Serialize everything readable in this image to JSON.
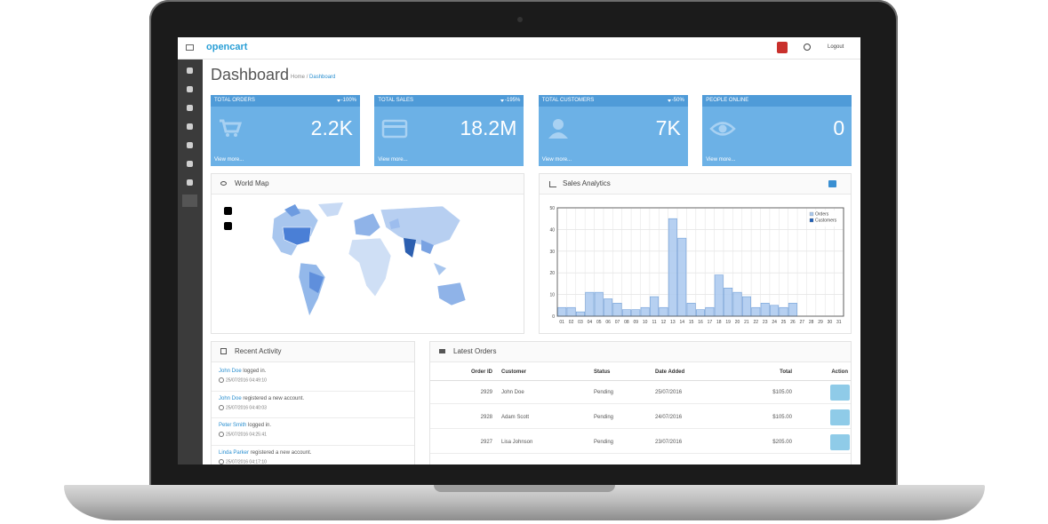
{
  "header": {
    "logo": "opencart",
    "logout": "Logout"
  },
  "page": {
    "title": "Dashboard",
    "breadcrumb": [
      "Home",
      "Dashboard"
    ]
  },
  "tiles": [
    {
      "label": "TOTAL ORDERS",
      "change": "-100%",
      "value": "2.2K",
      "link": "View more..."
    },
    {
      "label": "TOTAL SALES",
      "change": "-195%",
      "value": "18.2M",
      "link": "View more..."
    },
    {
      "label": "TOTAL CUSTOMERS",
      "change": "-50%",
      "value": "7K",
      "link": "View more..."
    },
    {
      "label": "PEOPLE ONLINE",
      "value": "0",
      "link": "View more..."
    }
  ],
  "world_map": {
    "title": "World Map"
  },
  "sales_analytics": {
    "title": "Sales Analytics"
  },
  "chart_data": {
    "type": "bar",
    "categories": [
      "01",
      "02",
      "03",
      "04",
      "05",
      "06",
      "07",
      "08",
      "09",
      "10",
      "11",
      "12",
      "13",
      "14",
      "15",
      "16",
      "17",
      "18",
      "19",
      "20",
      "21",
      "22",
      "23",
      "24",
      "25",
      "26",
      "27",
      "28",
      "29",
      "30",
      "31"
    ],
    "series": [
      {
        "name": "Orders",
        "color": "#a9c8ee",
        "values": [
          4,
          4,
          2,
          11,
          11,
          8,
          6,
          3,
          3,
          4,
          9,
          4,
          45,
          36,
          6,
          3,
          4,
          19,
          13,
          11,
          9,
          4,
          6,
          5,
          4,
          6,
          0,
          0,
          0,
          0,
          0
        ]
      },
      {
        "name": "Customers",
        "color": "#1f5fb8",
        "values": [
          0,
          0,
          0,
          0,
          0,
          0,
          0,
          0,
          0,
          0,
          0,
          0,
          0,
          0,
          0,
          0,
          0,
          0,
          0,
          0,
          0,
          0,
          0,
          0,
          0,
          0,
          0,
          0,
          0,
          0,
          0
        ]
      }
    ],
    "ylim": [
      0,
      50
    ],
    "yticks": [
      0,
      10,
      20,
      30,
      40,
      50
    ],
    "grid": true,
    "legend": "top-right"
  },
  "recent_activity": {
    "title": "Recent Activity",
    "items": [
      {
        "user": "John Doe",
        "text": "logged in.",
        "time": "25/07/2016 04:49:10"
      },
      {
        "user": "John Doe",
        "text": "registered a new account.",
        "time": "25/07/2016 04:40:03"
      },
      {
        "user": "Peter Smith",
        "text": "logged in.",
        "time": "25/07/2016 04:25:41"
      },
      {
        "user": "Linda Parker",
        "text": "registered a new account.",
        "time": "25/07/2016 04:17:10"
      }
    ]
  },
  "latest_orders": {
    "title": "Latest Orders",
    "columns": [
      "Order ID",
      "Customer",
      "Status",
      "Date Added",
      "Total",
      "Action"
    ],
    "rows": [
      [
        "2929",
        "John Doe",
        "Pending",
        "25/07/2016",
        "$105.00"
      ],
      [
        "2928",
        "Adam Scott",
        "Pending",
        "24/07/2016",
        "$105.00"
      ],
      [
        "2927",
        "Lisa Johnson",
        "Pending",
        "23/07/2016",
        "$205.00"
      ]
    ]
  }
}
